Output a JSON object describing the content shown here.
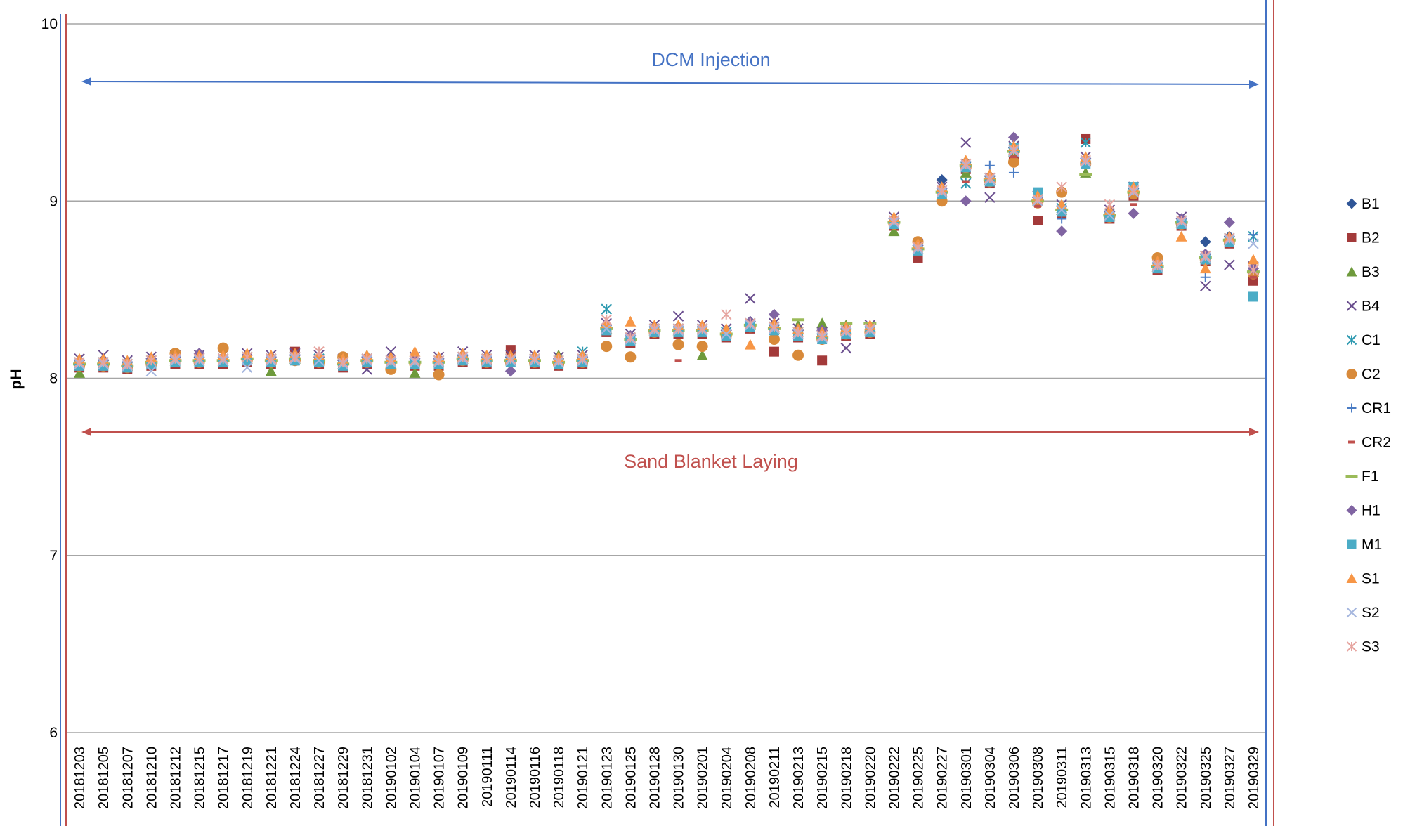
{
  "chart_data": {
    "type": "scatter",
    "y_label": "pH",
    "ylim": [
      6,
      10
    ],
    "yticks": [
      6,
      7,
      8,
      9,
      10
    ],
    "grid": true,
    "legend": "right",
    "annotations": [
      {
        "text": "DCM Injection",
        "color": "#4472c4"
      },
      {
        "text": "Sand Blanket Laying",
        "color": "#c0504d"
      }
    ],
    "categories": [
      "20181203",
      "20181205",
      "20181207",
      "20181210",
      "20181212",
      "20181215",
      "20181217",
      "20181219",
      "20181221",
      "20181224",
      "20181227",
      "20181229",
      "20181231",
      "20190102",
      "20190104",
      "20190107",
      "20190109",
      "20190111",
      "20190114",
      "20190116",
      "20190118",
      "20190121",
      "20190123",
      "20190125",
      "20190128",
      "20190130",
      "20190201",
      "20190204",
      "20190208",
      "20190211",
      "20190213",
      "20190215",
      "20190218",
      "20190220",
      "20190222",
      "20190225",
      "20190227",
      "20190301",
      "20190304",
      "20190306",
      "20190308",
      "20190311",
      "20190313",
      "20190315",
      "20190318",
      "20190320",
      "20190322",
      "20190325",
      "20190327",
      "20190329"
    ],
    "series": [
      {
        "name": "B1",
        "color": "#2f5597",
        "marker": "diamond",
        "values": [
          8.1,
          8.1,
          8.09,
          8.11,
          8.12,
          8.12,
          8.12,
          8.13,
          8.12,
          8.13,
          8.12,
          8.1,
          8.12,
          8.11,
          8.11,
          8.11,
          8.13,
          8.12,
          8.12,
          8.12,
          8.11,
          8.12,
          8.3,
          8.24,
          8.29,
          8.29,
          8.29,
          8.27,
          8.32,
          8.3,
          8.27,
          8.25,
          8.28,
          8.29,
          8.9,
          8.75,
          9.12,
          9.22,
          9.14,
          9.3,
          9.02,
          8.97,
          9.24,
          8.94,
          9.07,
          8.65,
          8.9,
          8.77,
          8.8,
          8.62
        ]
      },
      {
        "name": "B2",
        "color": "#a33a3a",
        "marker": "square",
        "values": [
          8.06,
          8.06,
          8.05,
          8.07,
          8.08,
          8.08,
          8.08,
          8.09,
          8.08,
          8.15,
          8.08,
          8.06,
          8.08,
          8.07,
          8.07,
          8.07,
          8.09,
          8.08,
          8.16,
          8.08,
          8.07,
          8.08,
          8.26,
          8.2,
          8.25,
          8.25,
          8.25,
          8.23,
          8.28,
          8.15,
          8.23,
          8.1,
          8.24,
          8.25,
          8.86,
          8.68,
          9.03,
          9.18,
          9.1,
          9.26,
          8.89,
          8.93,
          9.35,
          8.9,
          9.03,
          8.61,
          8.86,
          8.66,
          8.76,
          8.55
        ]
      },
      {
        "name": "B3",
        "color": "#6e9a3c",
        "marker": "triangle",
        "values": [
          8.03,
          8.08,
          8.07,
          8.09,
          8.1,
          8.1,
          8.1,
          8.11,
          8.04,
          8.11,
          8.1,
          8.08,
          8.13,
          8.09,
          8.03,
          8.09,
          8.11,
          8.1,
          8.1,
          8.1,
          8.13,
          8.1,
          8.28,
          8.22,
          8.27,
          8.27,
          8.13,
          8.25,
          8.3,
          8.28,
          8.3,
          8.31,
          8.3,
          8.27,
          8.83,
          8.73,
          9.05,
          9.16,
          9.12,
          9.28,
          9.0,
          8.95,
          9.16,
          8.92,
          9.05,
          8.63,
          8.88,
          8.68,
          8.78,
          8.6
        ]
      },
      {
        "name": "B4",
        "color": "#6a4e8e",
        "marker": "x",
        "values": [
          8.11,
          8.13,
          8.1,
          8.12,
          8.13,
          8.13,
          8.13,
          8.14,
          8.13,
          8.14,
          8.13,
          8.11,
          8.05,
          8.15,
          8.12,
          8.12,
          8.15,
          8.13,
          8.13,
          8.13,
          8.12,
          8.13,
          8.31,
          8.25,
          8.3,
          8.35,
          8.3,
          8.28,
          8.45,
          8.31,
          8.28,
          8.26,
          8.17,
          8.3,
          8.91,
          8.76,
          9.08,
          9.33,
          9.02,
          9.31,
          9.03,
          8.98,
          9.25,
          8.95,
          9.08,
          8.66,
          8.91,
          8.52,
          8.64,
          8.63
        ]
      },
      {
        "name": "C1",
        "color": "#2e9ab0",
        "marker": "asterisk",
        "values": [
          8.09,
          8.09,
          8.08,
          8.1,
          8.11,
          8.11,
          8.11,
          8.12,
          8.11,
          8.12,
          8.11,
          8.09,
          8.11,
          8.1,
          8.1,
          8.1,
          8.12,
          8.11,
          8.11,
          8.11,
          8.1,
          8.15,
          8.39,
          8.23,
          8.28,
          8.28,
          8.28,
          8.26,
          8.31,
          8.29,
          8.26,
          8.24,
          8.27,
          8.28,
          8.89,
          8.74,
          9.06,
          9.1,
          9.13,
          9.29,
          9.01,
          8.96,
          9.33,
          8.93,
          9.06,
          8.64,
          8.89,
          8.69,
          8.79,
          8.8
        ]
      },
      {
        "name": "C2",
        "color": "#d88a3a",
        "marker": "circle",
        "values": [
          8.07,
          8.07,
          8.06,
          8.08,
          8.14,
          8.09,
          8.17,
          8.1,
          8.09,
          8.1,
          8.09,
          8.12,
          8.09,
          8.05,
          8.08,
          8.02,
          8.1,
          8.09,
          8.09,
          8.09,
          8.08,
          8.09,
          8.18,
          8.12,
          8.26,
          8.19,
          8.18,
          8.24,
          8.29,
          8.22,
          8.13,
          8.22,
          8.25,
          8.26,
          8.87,
          8.77,
          9.0,
          9.19,
          9.11,
          9.22,
          8.99,
          9.05,
          9.21,
          8.91,
          9.04,
          8.68,
          8.87,
          8.67,
          8.77,
          8.59
        ]
      },
      {
        "name": "CR1",
        "color": "#4a7cc4",
        "marker": "plus",
        "values": [
          8.09,
          8.09,
          8.08,
          8.1,
          8.11,
          8.11,
          8.11,
          8.12,
          8.11,
          8.12,
          8.11,
          8.09,
          8.11,
          8.1,
          8.1,
          8.1,
          8.12,
          8.11,
          8.11,
          8.11,
          8.1,
          8.11,
          8.29,
          8.23,
          8.28,
          8.28,
          8.28,
          8.26,
          8.31,
          8.29,
          8.26,
          8.24,
          8.27,
          8.28,
          8.89,
          8.74,
          9.06,
          9.21,
          9.2,
          9.16,
          9.01,
          8.9,
          9.23,
          8.93,
          9.06,
          8.64,
          8.89,
          8.57,
          8.79,
          8.81
        ]
      },
      {
        "name": "CR2",
        "color": "#c0504d",
        "marker": "dash",
        "values": [
          8.05,
          8.05,
          8.04,
          8.06,
          8.07,
          8.07,
          8.07,
          8.08,
          8.07,
          8.08,
          8.07,
          8.05,
          8.07,
          8.06,
          8.06,
          8.06,
          8.08,
          8.07,
          8.07,
          8.07,
          8.06,
          8.07,
          8.25,
          8.19,
          8.24,
          8.1,
          8.24,
          8.22,
          8.27,
          8.25,
          8.22,
          8.2,
          8.23,
          8.24,
          8.85,
          8.7,
          9.02,
          9.11,
          9.09,
          9.25,
          8.97,
          8.92,
          9.19,
          8.89,
          8.98,
          8.6,
          8.85,
          8.65,
          8.75,
          8.57
        ]
      },
      {
        "name": "F1",
        "color": "#9bbb59",
        "marker": "longdash",
        "values": [
          8.08,
          8.08,
          8.07,
          8.09,
          8.1,
          8.1,
          8.1,
          8.11,
          8.1,
          8.11,
          8.1,
          8.08,
          8.1,
          8.09,
          8.09,
          8.09,
          8.11,
          8.1,
          8.1,
          8.1,
          8.09,
          8.1,
          8.28,
          8.22,
          8.27,
          8.27,
          8.27,
          8.25,
          8.3,
          8.28,
          8.33,
          8.23,
          8.31,
          8.31,
          8.88,
          8.73,
          9.05,
          9.2,
          9.12,
          9.28,
          9.0,
          8.95,
          9.15,
          8.92,
          9.05,
          8.63,
          8.88,
          8.68,
          8.78,
          8.6
        ]
      },
      {
        "name": "H1",
        "color": "#8064a2",
        "marker": "diamond",
        "values": [
          8.1,
          8.1,
          8.09,
          8.11,
          8.12,
          8.14,
          8.12,
          8.13,
          8.12,
          8.13,
          8.12,
          8.1,
          8.12,
          8.11,
          8.11,
          8.11,
          8.13,
          8.12,
          8.04,
          8.12,
          8.11,
          8.12,
          8.3,
          8.24,
          8.29,
          8.29,
          8.29,
          8.27,
          8.32,
          8.36,
          8.27,
          8.27,
          8.28,
          8.29,
          8.9,
          8.75,
          9.07,
          9.0,
          9.14,
          9.36,
          9.02,
          8.83,
          9.24,
          8.94,
          8.93,
          8.65,
          8.9,
          8.7,
          8.88,
          8.62
        ]
      },
      {
        "name": "M1",
        "color": "#4bacc6",
        "marker": "square",
        "values": [
          8.07,
          8.07,
          8.06,
          8.08,
          8.09,
          8.09,
          8.09,
          8.1,
          8.09,
          8.1,
          8.09,
          8.07,
          8.09,
          8.08,
          8.08,
          8.08,
          8.1,
          8.09,
          8.09,
          8.09,
          8.08,
          8.09,
          8.27,
          8.21,
          8.26,
          8.26,
          8.26,
          8.24,
          8.29,
          8.27,
          8.24,
          8.22,
          8.25,
          8.26,
          8.87,
          8.72,
          9.04,
          9.19,
          9.11,
          9.3,
          9.05,
          8.94,
          9.21,
          8.91,
          9.08,
          8.62,
          8.87,
          8.67,
          8.77,
          8.46
        ]
      },
      {
        "name": "S1",
        "color": "#f79646",
        "marker": "triangle",
        "values": [
          8.11,
          8.11,
          8.1,
          8.12,
          8.13,
          8.13,
          8.13,
          8.14,
          8.13,
          8.14,
          8.13,
          8.11,
          8.13,
          8.12,
          8.15,
          8.12,
          8.14,
          8.13,
          8.13,
          8.13,
          8.12,
          8.13,
          8.31,
          8.32,
          8.3,
          8.3,
          8.3,
          8.28,
          8.19,
          8.31,
          8.28,
          8.26,
          8.29,
          8.3,
          8.91,
          8.76,
          9.08,
          9.23,
          9.15,
          9.31,
          9.03,
          8.98,
          9.25,
          8.95,
          9.08,
          8.66,
          8.8,
          8.62,
          8.8,
          8.67
        ]
      },
      {
        "name": "S2",
        "color": "#a5b6de",
        "marker": "x",
        "values": [
          8.08,
          8.08,
          8.07,
          8.04,
          8.1,
          8.1,
          8.1,
          8.06,
          8.1,
          8.11,
          8.1,
          8.08,
          8.1,
          8.09,
          8.09,
          8.09,
          8.11,
          8.1,
          8.1,
          8.1,
          8.09,
          8.1,
          8.28,
          8.22,
          8.27,
          8.27,
          8.27,
          8.25,
          8.3,
          8.28,
          8.25,
          8.23,
          8.26,
          8.27,
          8.88,
          8.73,
          9.05,
          9.2,
          9.12,
          9.28,
          9.0,
          8.95,
          9.22,
          8.92,
          9.05,
          8.63,
          8.88,
          8.68,
          8.78,
          8.76
        ]
      },
      {
        "name": "S3",
        "color": "#e6a5a0",
        "marker": "asterisk",
        "values": [
          8.09,
          8.09,
          8.08,
          8.1,
          8.11,
          8.11,
          8.11,
          8.12,
          8.11,
          8.12,
          8.15,
          8.09,
          8.11,
          8.1,
          8.1,
          8.1,
          8.12,
          8.11,
          8.11,
          8.11,
          8.1,
          8.11,
          8.33,
          8.23,
          8.28,
          8.28,
          8.28,
          8.36,
          8.31,
          8.29,
          8.26,
          8.24,
          8.27,
          8.28,
          8.89,
          8.74,
          9.06,
          9.21,
          9.13,
          9.29,
          9.01,
          9.08,
          9.23,
          8.98,
          9.06,
          8.64,
          8.89,
          8.69,
          8.79,
          8.61
        ]
      }
    ]
  }
}
